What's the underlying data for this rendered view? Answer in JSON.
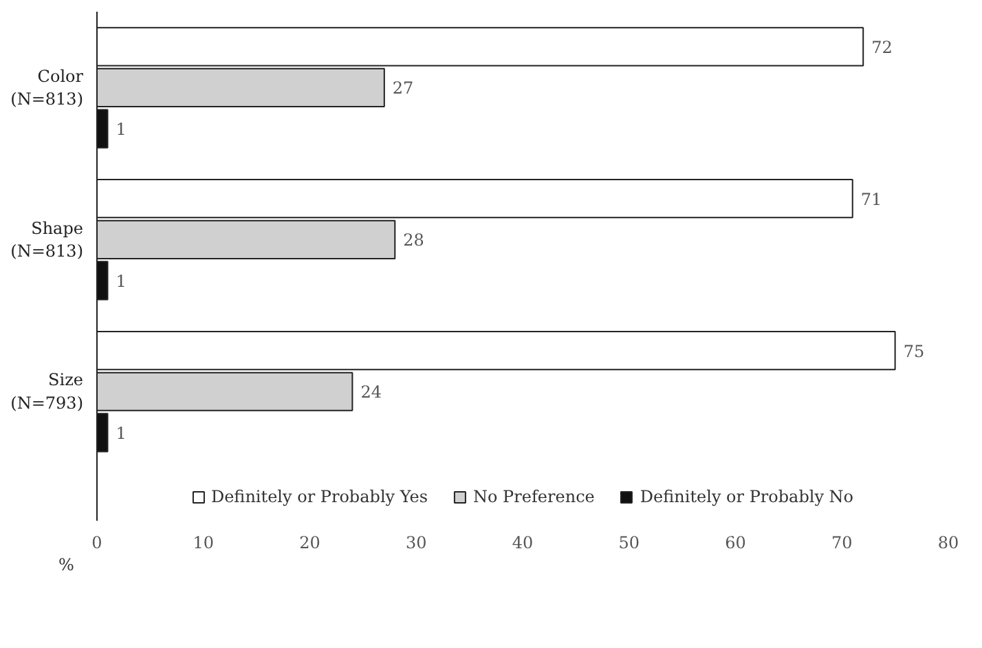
{
  "chart_data": {
    "type": "bar",
    "orientation": "horizontal",
    "categories": [
      "Color\n(N=813)",
      "Shape\n(N=813)",
      "Size\n(N=793)"
    ],
    "series": [
      {
        "name": "Definitely or Probably Yes",
        "color": "#ffffff",
        "values": [
          72,
          71,
          75
        ]
      },
      {
        "name": "No Preference",
        "color": "#d0d0d0",
        "values": [
          27,
          28,
          24
        ]
      },
      {
        "name": "Definitely or Probably No",
        "color": "#111111",
        "values": [
          1,
          1,
          1
        ]
      }
    ],
    "xlabel": "%",
    "xlim": [
      0,
      80
    ],
    "xticks": [
      0,
      10,
      20,
      30,
      40,
      50,
      60,
      70,
      80
    ],
    "data_labels": true,
    "grid": false,
    "legend": "bottom"
  }
}
